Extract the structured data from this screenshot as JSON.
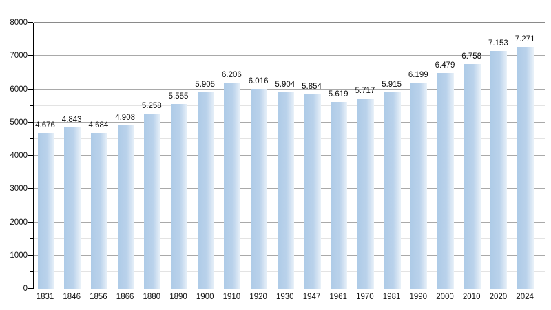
{
  "page": {
    "background_color": "#ffffff"
  },
  "chart_data": {
    "type": "bar",
    "title": "",
    "xlabel": "",
    "ylabel": "",
    "categories": [
      "1831",
      "1846",
      "1856",
      "1866",
      "1880",
      "1890",
      "1900",
      "1910",
      "1920",
      "1930",
      "1947",
      "1961",
      "1970",
      "1981",
      "1990",
      "2000",
      "2010",
      "2020",
      "2024"
    ],
    "values": [
      4676,
      4843,
      4684,
      4908,
      5258,
      5555,
      5905,
      6206,
      6016,
      5904,
      5854,
      5619,
      5717,
      5915,
      6199,
      6479,
      6758,
      7153,
      7271
    ],
    "value_labels": [
      "4.676",
      "4.843",
      "4.684",
      "4.908",
      "5.258",
      "5.555",
      "5.905",
      "6.206",
      "6.016",
      "5.904",
      "5.854",
      "5.619",
      "5.717",
      "5.915",
      "6.199",
      "6.479",
      "6.758",
      "7.153",
      "7.271"
    ],
    "ylim": [
      0,
      8000
    ],
    "ytick_step": 1000,
    "minor_ytick_step": 500,
    "ytick_labels": [
      "0",
      "1000",
      "2000",
      "3000",
      "4000",
      "5000",
      "6000",
      "7000",
      "8000"
    ],
    "grid": true,
    "legend": "none",
    "colors": {
      "bar_main": "#aecbe7",
      "bar_mid": "#bad2eb",
      "bar_fade": "#e9f1f9",
      "major_grid": "#a9a9a9",
      "top_grid": "#8a8a8a",
      "minor_grid": "#e3e3e3",
      "axis": "#000000",
      "text": "#111111"
    }
  }
}
